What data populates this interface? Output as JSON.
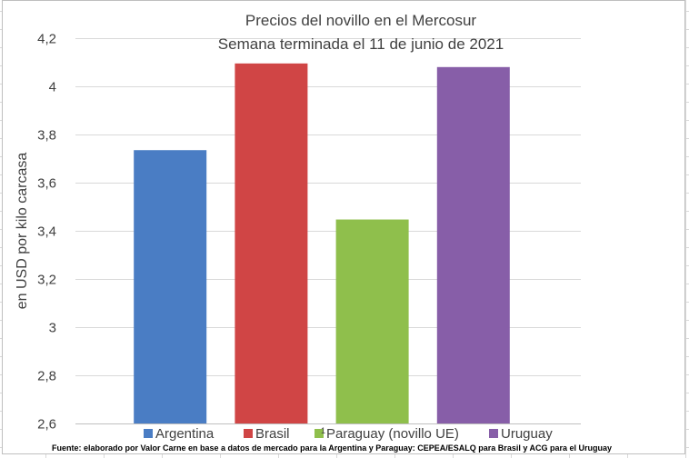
{
  "chart_data": {
    "type": "bar",
    "title_lines": [
      "Precios del novillo en el Mercosur",
      "Semana terminada el 11 de junio de 2021"
    ],
    "ylabel": "en USD por kilo carcasa",
    "xlabel": "",
    "ylim": [
      2.6,
      4.2
    ],
    "yticks": [
      "2,6",
      "2,8",
      "3",
      "3,2",
      "3,4",
      "3,6",
      "3,8",
      "4",
      "4,2"
    ],
    "ytick_values": [
      2.6,
      2.8,
      3.0,
      3.2,
      3.4,
      3.6,
      3.8,
      4.0,
      4.2
    ],
    "grid": true,
    "legend_position": "bottom",
    "series": [
      {
        "name": "Argentina",
        "value": 3.735,
        "color": "#4a7dc4"
      },
      {
        "name": "Brasil",
        "value": 4.095,
        "color": "#d04545"
      },
      {
        "name": "Paraguay (novillo UE)",
        "value": 3.447,
        "color": "#8fbf4c"
      },
      {
        "name": "Uruguay",
        "value": 4.08,
        "color": "#875ea8"
      }
    ],
    "legend_footnote_mark": "1",
    "source": "Fuente: elaborado por Valor Carne en base a datos de mercado para la Argentina y Paraguay: CEPEA/ESALQ para Brasil y ACG para el Uruguay"
  }
}
